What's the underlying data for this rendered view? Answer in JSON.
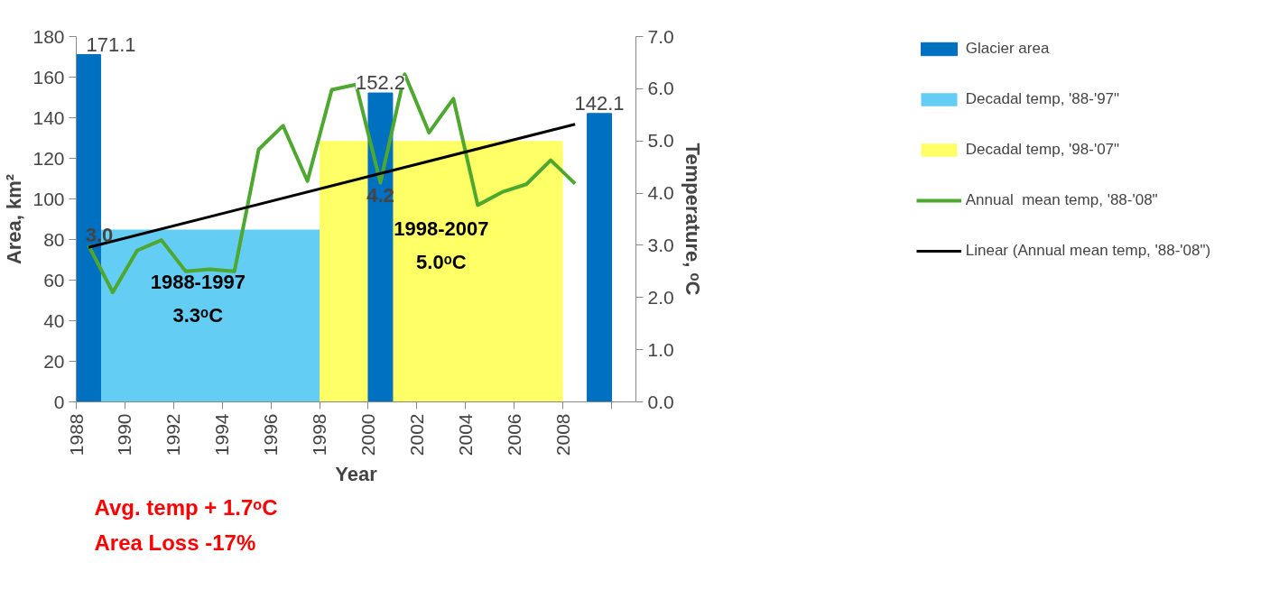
{
  "chart_data": {
    "type": "bar",
    "xlabel": "Year",
    "ylabel": "Area, km²",
    "y2label": "Temperature, ᵒC",
    "xlim": [
      1988,
      2011
    ],
    "xticks": [
      1988,
      1990,
      1992,
      1994,
      1996,
      1998,
      2000,
      2002,
      2004,
      2006,
      2008,
      {
        "value": 2010,
        "label": null
      }
    ],
    "ylim": [
      0,
      180
    ],
    "yticks": [
      0,
      20,
      40,
      60,
      80,
      100,
      120,
      140,
      160,
      180
    ],
    "y2lim": [
      0,
      7
    ],
    "y2ticks": [
      {
        "value": 0,
        "label": "0.0"
      },
      {
        "value": 1,
        "label": "1.0"
      },
      {
        "value": 2,
        "label": "2.0"
      },
      {
        "value": 3,
        "label": "3.0"
      },
      {
        "value": 4,
        "label": "4.0"
      },
      {
        "value": 5,
        "label": "5.0"
      },
      {
        "value": 6,
        "label": "6.0"
      },
      {
        "value": 7,
        "label": "7.0"
      }
    ],
    "grid": false,
    "legend": "right",
    "series": [
      {
        "name": "Glacier area",
        "color": "#0070c0",
        "x": [
          1988.5,
          2000.5,
          2009.5
        ],
        "values": [
          171.1,
          152.2,
          142.1
        ],
        "value_labels": [
          "171.1",
          "152.2",
          "142.1"
        ]
      },
      {
        "name": "Decadal temp, '88-'97\"",
        "type": "area",
        "axis": "y2",
        "color": "#63cdf4",
        "x": [
          1988,
          1998
        ],
        "values": [
          3.3,
          3.3
        ]
      },
      {
        "name": "Decadal temp, '98-'07\"",
        "type": "area",
        "axis": "y2",
        "color": "#ffff66",
        "x": [
          1998,
          2008
        ],
        "values": [
          5.0,
          5.0
        ]
      },
      {
        "name": "Annual  mean temp, '88-'08\"",
        "type": "line",
        "axis": "y2",
        "color": "#4ea72e",
        "x": [
          1988.5,
          1989.5,
          1990.5,
          1991.5,
          1992.5,
          1993.5,
          1994.5,
          1995.5,
          1996.5,
          1997.5,
          1998.5,
          1999.5,
          2000.5,
          2001.5,
          2002.5,
          2003.5,
          2004.5,
          2005.5,
          2006.5,
          2007.5,
          2008.5
        ],
        "values": [
          3.0,
          2.1,
          2.9,
          3.1,
          2.5,
          2.54,
          2.5,
          4.84,
          5.29,
          4.23,
          5.98,
          6.08,
          4.2,
          6.28,
          5.16,
          5.81,
          3.77,
          4.02,
          4.17,
          4.63,
          4.18
        ],
        "value_labels": [
          "3.0",
          null,
          null,
          null,
          null,
          null,
          null,
          null,
          null,
          null,
          null,
          null,
          "4.2",
          null,
          null,
          null,
          null,
          null,
          null,
          null,
          null
        ]
      },
      {
        "name": "Linear (Annual mean temp, '88-'08\")",
        "type": "line",
        "axis": "y2",
        "color": "#000000",
        "x": [
          1988.5,
          2008.5
        ],
        "values": [
          2.96,
          5.32
        ]
      }
    ],
    "annotations": [
      "1988-1997\n3.3ᵒC",
      "1998-2007\n5.0ᵒC",
      "Avg. temp + 1.7ᵒC",
      "Area Loss -17%"
    ]
  }
}
